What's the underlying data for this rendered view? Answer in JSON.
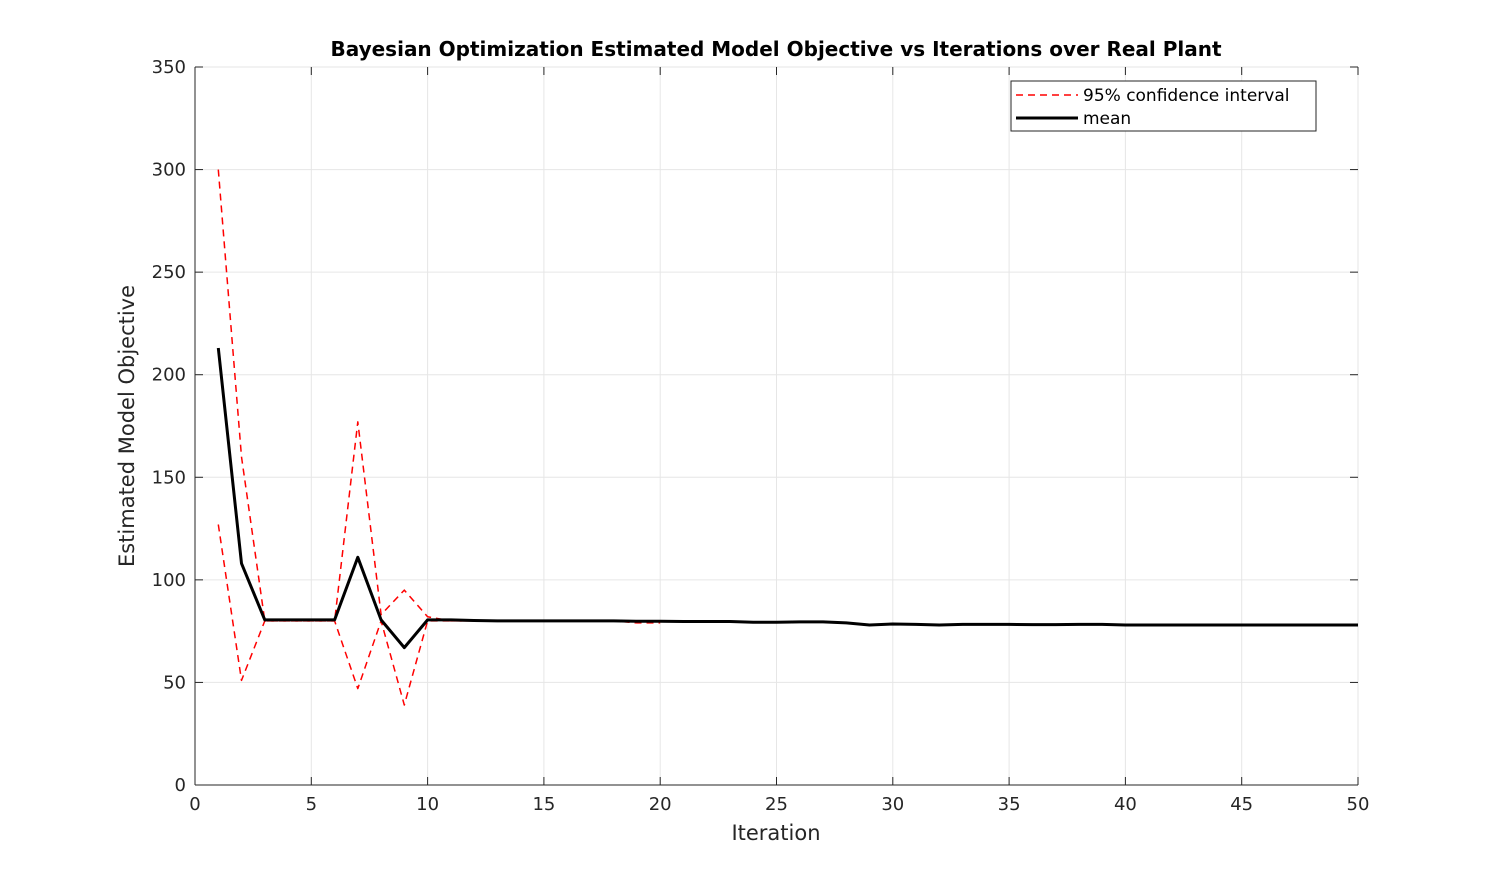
{
  "chart_data": {
    "type": "line",
    "title": "Bayesian Optimization Estimated Model Objective vs Iterations over Real Plant",
    "xlabel": "Iteration",
    "ylabel": "Estimated Model Objective",
    "xlim": [
      0,
      50
    ],
    "ylim": [
      0,
      350
    ],
    "xticks": [
      "0",
      "5",
      "10",
      "15",
      "20",
      "25",
      "30",
      "35",
      "40",
      "45",
      "50"
    ],
    "yticks": [
      "0",
      "50",
      "100",
      "150",
      "200",
      "250",
      "300",
      "350"
    ],
    "grid": true,
    "legend_position": "top-right",
    "legend": [
      "95% confidence interval",
      "mean"
    ],
    "colors": {
      "ci": "#ff0000",
      "mean": "#000000",
      "grid": "#e6e6e6",
      "axis": "#262626"
    },
    "series": [
      {
        "name": "95% confidence interval",
        "role": "upper",
        "x": [
          1,
          2,
          3,
          4,
          5,
          6,
          7,
          8,
          9,
          10,
          11,
          12,
          13,
          14,
          15,
          16,
          17,
          18,
          19,
          20
        ],
        "y": [
          300,
          160,
          80,
          80,
          80,
          80,
          177,
          83,
          95,
          82,
          80,
          80,
          80,
          80,
          80,
          80,
          80,
          80,
          80,
          80
        ]
      },
      {
        "name": "95% confidence interval",
        "role": "lower",
        "x": [
          1,
          2,
          3,
          4,
          5,
          6,
          7,
          8,
          9,
          10,
          11,
          12,
          13,
          14,
          15,
          16,
          17,
          18,
          19,
          20
        ],
        "y": [
          127,
          51,
          80,
          80,
          80,
          80,
          47,
          80,
          39,
          80,
          80,
          80,
          80,
          80,
          80,
          80,
          80,
          80,
          79,
          79
        ]
      },
      {
        "name": "mean",
        "x": [
          1,
          2,
          3,
          4,
          5,
          6,
          7,
          8,
          9,
          10,
          11,
          12,
          13,
          14,
          15,
          16,
          17,
          18,
          19,
          20,
          21,
          22,
          23,
          24,
          25,
          26,
          27,
          28,
          29,
          30,
          31,
          32,
          33,
          34,
          35,
          36,
          37,
          38,
          39,
          40,
          41,
          42,
          43,
          44,
          45,
          46,
          47,
          48,
          49,
          50
        ],
        "y": [
          213,
          108,
          80.5,
          80.5,
          80.5,
          80.5,
          111,
          80.5,
          67,
          80.5,
          80.5,
          80.2,
          80,
          80,
          80,
          80,
          80,
          80,
          79.8,
          79.8,
          79.7,
          79.7,
          79.7,
          79.3,
          79.3,
          79.5,
          79.5,
          79,
          78,
          78.5,
          78.3,
          78,
          78.3,
          78.3,
          78.3,
          78.2,
          78.2,
          78.3,
          78.3,
          78,
          78,
          78,
          78,
          78,
          78,
          78,
          78,
          78,
          78,
          78
        ]
      }
    ]
  }
}
